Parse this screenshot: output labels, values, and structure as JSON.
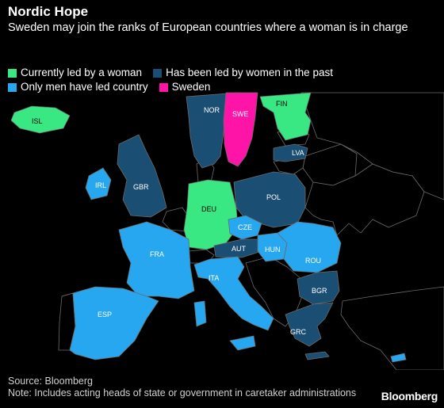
{
  "title": "Nordic Hope",
  "subtitle": "Sweden may join the ranks of European countries where a woman is in charge",
  "legend": [
    {
      "label": "Currently led by a woman",
      "color": "#3ae883"
    },
    {
      "label": "Has been led by women in the past",
      "color": "#1a4e73"
    },
    {
      "label": "Only men have led country",
      "color": "#27a7f0"
    },
    {
      "label": "Sweden",
      "color": "#ff14a8"
    }
  ],
  "colors": {
    "current": "#3ae883",
    "past": "#1a4e73",
    "men": "#27a7f0",
    "sweden": "#ff14a8",
    "none": "#000000",
    "border": "#6a6a6a"
  },
  "countries": [
    {
      "code": "ISL",
      "status": "current"
    },
    {
      "code": "NOR",
      "status": "past"
    },
    {
      "code": "SWE",
      "status": "sweden"
    },
    {
      "code": "FIN",
      "status": "current"
    },
    {
      "code": "LVA",
      "status": "past"
    },
    {
      "code": "IRL",
      "status": "men"
    },
    {
      "code": "GBR",
      "status": "past"
    },
    {
      "code": "DEU",
      "status": "current"
    },
    {
      "code": "POL",
      "status": "past"
    },
    {
      "code": "CZE",
      "status": "men"
    },
    {
      "code": "FRA",
      "status": "men"
    },
    {
      "code": "AUT",
      "status": "past"
    },
    {
      "code": "HUN",
      "status": "men"
    },
    {
      "code": "ROU",
      "status": "men"
    },
    {
      "code": "ITA",
      "status": "men"
    },
    {
      "code": "BGR",
      "status": "past"
    },
    {
      "code": "ESP",
      "status": "men"
    },
    {
      "code": "GRC",
      "status": "past"
    }
  ],
  "source": "Source: Bloomberg",
  "note": "Note: Includes acting heads of state or government in caretaker administrations",
  "brand": "Bloomberg"
}
